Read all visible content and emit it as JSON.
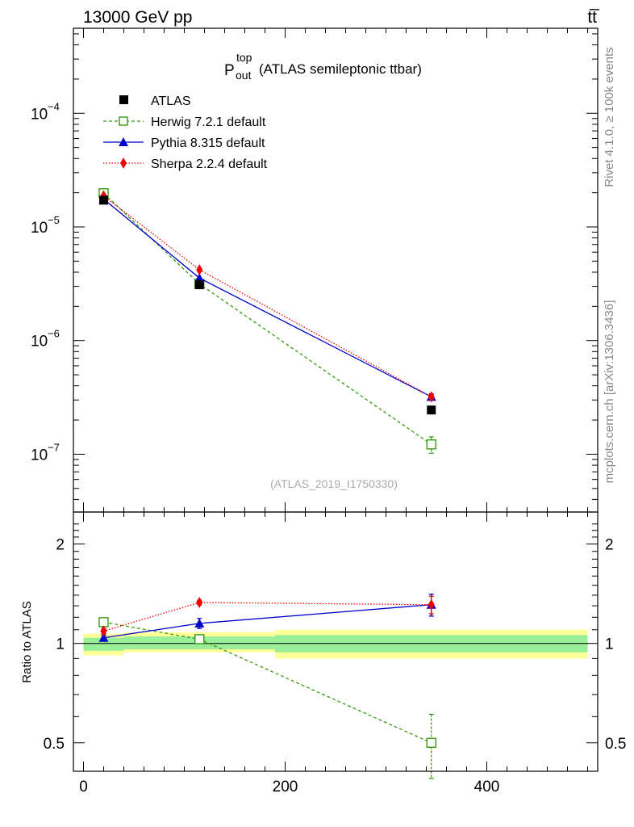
{
  "header": {
    "left": "13000 GeV pp",
    "right": "tt̅"
  },
  "title": {
    "main": "P",
    "sup": "top",
    "sub": "out",
    "rest": "(ATLAS semileptonic ttbar)"
  },
  "side": {
    "top": "Rivet 4.1.0, ≥ 100k events",
    "bottom": "mcplots.cern.ch [arXiv:1306.3436]"
  },
  "analysis_id": "(ATLAS_2019_I1750330)",
  "colors": {
    "atlas": "#000000",
    "herwig": "#3a9a12",
    "pythia": "#0000cc",
    "sherpa": "#ee0000",
    "band_yellow": "#ffff99",
    "band_green": "#99ee99"
  },
  "legend": [
    {
      "key": "atlas",
      "label": "ATLAS"
    },
    {
      "key": "herwig",
      "label": "Herwig 7.2.1 default"
    },
    {
      "key": "pythia",
      "label": "Pythia 8.315 default"
    },
    {
      "key": "sherpa",
      "label": "Sherpa 2.2.4 default"
    }
  ],
  "chart_data": {
    "type": "scatter",
    "xlim": [
      -10,
      510
    ],
    "x_ticks": [
      0,
      200,
      400
    ],
    "x_tick_labels": [
      "0",
      "200",
      "400"
    ],
    "main": {
      "yscale": "log",
      "ylim": [
        3.1e-08,
        0.00056
      ],
      "y_ticks": [
        1e-07,
        1e-06,
        1e-05,
        0.0001
      ],
      "y_tick_labels": [
        {
          "base": "10",
          "exp": "−7"
        },
        {
          "base": "10",
          "exp": "−6"
        },
        {
          "base": "10",
          "exp": "−5"
        },
        {
          "base": "10",
          "exp": "−4"
        }
      ],
      "bins": [
        {
          "xlo": 0,
          "xhi": 40
        },
        {
          "xlo": 40,
          "xhi": 190
        },
        {
          "xlo": 190,
          "xhi": 500
        }
      ],
      "series": [
        {
          "key": "atlas",
          "name": "ATLAS",
          "x": [
            20,
            115,
            345
          ],
          "y": [
            1.72e-05,
            3.1e-06,
            2.45e-07
          ],
          "err": [
            0,
            0,
            0
          ]
        },
        {
          "key": "herwig",
          "name": "Herwig 7.2.1 default",
          "x": [
            20,
            115,
            345
          ],
          "y": [
            1.98e-05,
            3.15e-06,
            1.22e-07
          ],
          "err": [
            0,
            0,
            2e-08
          ]
        },
        {
          "key": "pythia",
          "name": "Pythia 8.315 default",
          "x": [
            20,
            115,
            345
          ],
          "y": [
            1.76e-05,
            3.55e-06,
            3.2e-07
          ],
          "err": [
            0,
            0,
            2e-08
          ]
        },
        {
          "key": "sherpa",
          "name": "Sherpa 2.2.4 default",
          "x": [
            20,
            115,
            345
          ],
          "y": [
            1.88e-05,
            4.2e-06,
            3.2e-07
          ],
          "err": [
            0,
            0,
            1.5e-08
          ]
        }
      ]
    },
    "ratio": {
      "ylabel": "Ratio to ATLAS",
      "yscale": "log",
      "ylim": [
        0.41,
        2.5
      ],
      "y_ticks": [
        0.5,
        1,
        2
      ],
      "y_tick_labels": [
        "0.5",
        "1",
        "2"
      ],
      "band_inner": [
        [
          0.95,
          1.04
        ],
        [
          0.96,
          1.05
        ],
        [
          0.94,
          1.06
        ]
      ],
      "band_outer": [
        [
          0.92,
          1.07
        ],
        [
          0.94,
          1.08
        ],
        [
          0.9,
          1.1
        ]
      ],
      "series": [
        {
          "key": "herwig",
          "x": [
            20,
            115,
            345
          ],
          "y": [
            1.16,
            1.03,
            0.5
          ],
          "err": [
            0.02,
            0.02,
            0.11
          ]
        },
        {
          "key": "pythia",
          "x": [
            20,
            115,
            345
          ],
          "y": [
            1.04,
            1.15,
            1.31
          ],
          "err": [
            0.02,
            0.04,
            0.1
          ]
        },
        {
          "key": "sherpa",
          "x": [
            20,
            115,
            345
          ],
          "y": [
            1.09,
            1.33,
            1.31
          ],
          "err": [
            0.02,
            0.02,
            0.08
          ]
        }
      ]
    }
  }
}
